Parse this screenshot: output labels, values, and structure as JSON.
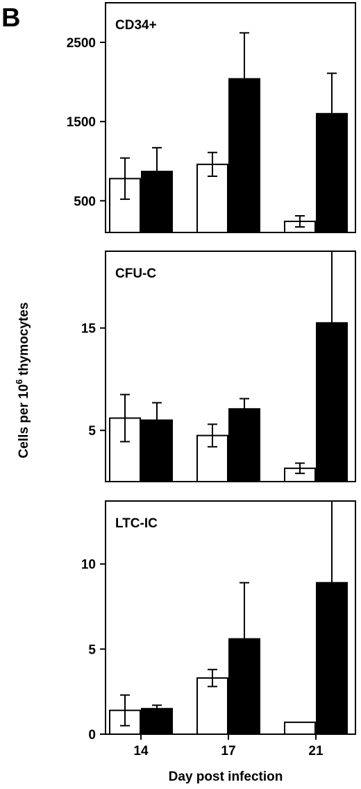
{
  "figure": {
    "panel_letter": "B",
    "ylabel_prefix": "Cells per 10",
    "ylabel_superscript": "6",
    "ylabel_suffix": " thymocytes",
    "xlabel": "Day post infection"
  },
  "chart_data": [
    {
      "type": "bar",
      "title": "CD34+",
      "categories": [
        "14",
        "17",
        "21"
      ],
      "ylim": [
        100,
        3000
      ],
      "yticks": [
        500,
        1500,
        2500
      ],
      "series": [
        {
          "color": "#ffffff",
          "values": [
            780,
            960,
            240
          ],
          "errors": [
            260,
            150,
            70
          ]
        },
        {
          "color": "#000000",
          "values": [
            870,
            2040,
            1600
          ],
          "errors": [
            300,
            580,
            510
          ]
        }
      ]
    },
    {
      "type": "bar",
      "title": "CFU-C",
      "categories": [
        "14",
        "17",
        "21"
      ],
      "ylim": [
        0,
        22.5
      ],
      "yticks": [
        5,
        15
      ],
      "series": [
        {
          "color": "#ffffff",
          "values": [
            6.2,
            4.5,
            1.3
          ],
          "errors": [
            2.3,
            1.1,
            0.5
          ]
        },
        {
          "color": "#000000",
          "values": [
            6.0,
            7.1,
            15.5
          ],
          "errors": [
            1.7,
            1.0,
            7.5
          ]
        }
      ]
    },
    {
      "type": "bar",
      "title": "LTC-IC",
      "categories": [
        "14",
        "17",
        "21"
      ],
      "ylim": [
        0,
        13.7
      ],
      "yticks": [
        0,
        5,
        10
      ],
      "series": [
        {
          "color": "#ffffff",
          "values": [
            1.4,
            3.3,
            0.7
          ],
          "errors": [
            0.9,
            0.5,
            0
          ]
        },
        {
          "color": "#000000",
          "values": [
            1.5,
            5.6,
            8.9
          ],
          "errors": [
            0.2,
            3.3,
            4.8
          ]
        }
      ]
    }
  ]
}
